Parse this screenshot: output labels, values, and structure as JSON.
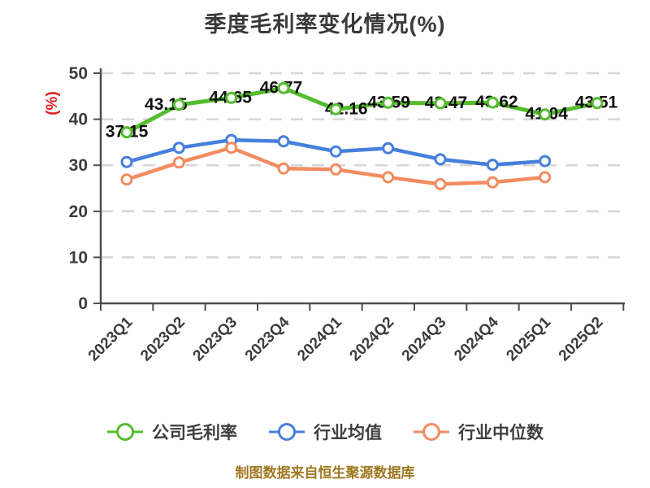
{
  "title": "季度毛利率变化情况(%)",
  "y_axis_name": "(%)",
  "footer": "制图数据来自恒生聚源数据库",
  "colors": {
    "title": "#3a3a3a",
    "axis": "#4c4c4c",
    "grid": "#d6d6d6",
    "tick_label": "#3c3c3c",
    "data_label": "#111111",
    "y_axis_name": "#e01f1f",
    "footer": "#a07822",
    "marker_fill": "#ffffff"
  },
  "chart_data": {
    "type": "line",
    "title": "季度毛利率变化情况(%)",
    "categories": [
      "2023Q1",
      "2023Q2",
      "2023Q3",
      "2023Q4",
      "2024Q1",
      "2024Q2",
      "2024Q3",
      "2024Q4",
      "2025Q1",
      "2025Q2"
    ],
    "series": [
      {
        "key": "company-gross-margin",
        "name": "公司毛利率",
        "color": "#55bc2e",
        "values": [
          37.15,
          43.15,
          44.65,
          46.77,
          42.16,
          43.59,
          43.47,
          43.62,
          41.04,
          43.51
        ],
        "show_labels": true
      },
      {
        "key": "industry-average",
        "name": "行业均值",
        "color": "#4680dc",
        "values": [
          30.7,
          33.8,
          35.5,
          35.2,
          33.0,
          33.7,
          31.3,
          30.1,
          30.9,
          null
        ],
        "show_labels": false
      },
      {
        "key": "industry-median",
        "name": "行业中位数",
        "color": "#f28c60",
        "values": [
          26.9,
          30.6,
          33.8,
          29.3,
          29.1,
          27.4,
          25.9,
          26.3,
          27.4,
          null
        ],
        "show_labels": false
      }
    ],
    "ylabel": "(%)",
    "ylim": [
      0,
      50
    ],
    "yticks": [
      0,
      10,
      20,
      30,
      40,
      50
    ],
    "grid": "dashed-horizontal",
    "x_label_rotation": -45,
    "legend_position": "bottom"
  }
}
